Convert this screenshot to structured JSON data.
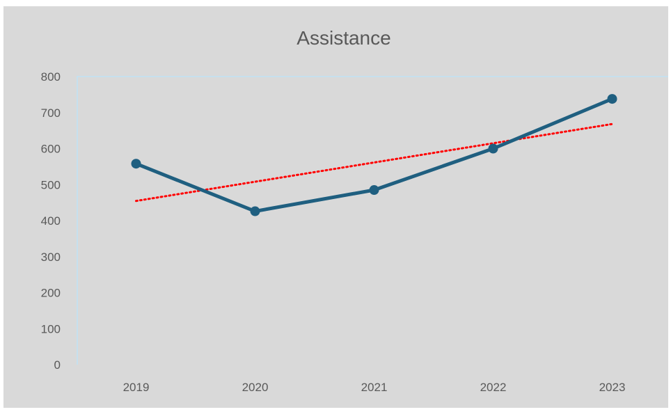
{
  "chart_data": {
    "type": "line",
    "title": "Assistance",
    "xlabel": "",
    "ylabel": "",
    "categories": [
      "2019",
      "2020",
      "2021",
      "2022",
      "2023"
    ],
    "series": [
      {
        "values": [
          558,
          426,
          485,
          600,
          738
        ],
        "color": "#1f5f80",
        "markers": true
      }
    ],
    "trendline": {
      "type": "linear",
      "color": "#ff0000",
      "style": "dotted"
    },
    "ylim": [
      0,
      800
    ],
    "yticks": [
      0,
      100,
      200,
      300,
      400,
      500,
      600,
      700,
      800
    ],
    "grid": false,
    "legend": "none",
    "background": "#d9d9d9",
    "axis_color": "#bfe3f5"
  }
}
